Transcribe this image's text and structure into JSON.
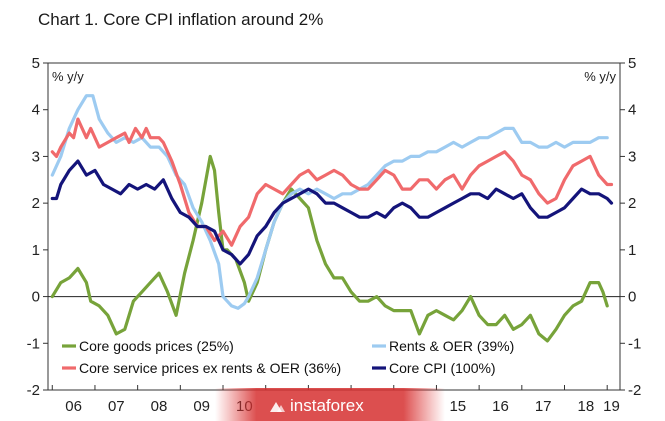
{
  "chart_data": {
    "type": "line",
    "title": "Chart 1. Core CPI inflation around 2%",
    "ylabel_left": "% y/y",
    "ylabel_right": "% y/y",
    "ylim": [
      -2,
      5
    ],
    "yticks": [
      -2,
      -1,
      0,
      1,
      2,
      3,
      4,
      5
    ],
    "xlim": [
      2005.9,
      2019.3
    ],
    "xticks": [
      {
        "label": "06",
        "x": 2006.5
      },
      {
        "label": "07",
        "x": 2007.5
      },
      {
        "label": "08",
        "x": 2008.5
      },
      {
        "label": "09",
        "x": 2009.5
      },
      {
        "label": "10",
        "x": 2010.5
      },
      {
        "label": "15",
        "x": 2015.5
      },
      {
        "label": "16",
        "x": 2016.5
      },
      {
        "label": "17",
        "x": 2017.5
      },
      {
        "label": "18",
        "x": 2018.5
      },
      {
        "label": "19",
        "x": 2019.1
      }
    ],
    "grid": false,
    "legend_position": "bottom",
    "series": [
      {
        "name": "Core goods prices (25%)",
        "color": "#77a33a",
        "points": [
          [
            2006.0,
            0.0
          ],
          [
            2006.2,
            0.3
          ],
          [
            2006.4,
            0.4
          ],
          [
            2006.6,
            0.6
          ],
          [
            2006.8,
            0.3
          ],
          [
            2006.9,
            -0.1
          ],
          [
            2007.1,
            -0.2
          ],
          [
            2007.3,
            -0.4
          ],
          [
            2007.5,
            -0.8
          ],
          [
            2007.7,
            -0.7
          ],
          [
            2007.9,
            -0.1
          ],
          [
            2008.1,
            0.1
          ],
          [
            2008.3,
            0.3
          ],
          [
            2008.5,
            0.5
          ],
          [
            2008.7,
            0.1
          ],
          [
            2008.9,
            -0.4
          ],
          [
            2009.1,
            0.5
          ],
          [
            2009.3,
            1.2
          ],
          [
            2009.5,
            2.0
          ],
          [
            2009.7,
            3.0
          ],
          [
            2009.8,
            2.7
          ],
          [
            2009.9,
            1.8
          ],
          [
            2010.0,
            1.0
          ],
          [
            2010.1,
            1.0
          ],
          [
            2010.3,
            0.8
          ],
          [
            2010.5,
            0.3
          ],
          [
            2010.6,
            -0.1
          ],
          [
            2010.8,
            0.3
          ],
          [
            2011.0,
            1.0
          ],
          [
            2011.2,
            1.6
          ],
          [
            2011.4,
            2.0
          ],
          [
            2011.6,
            2.3
          ],
          [
            2011.8,
            2.1
          ],
          [
            2012.0,
            1.9
          ],
          [
            2012.2,
            1.2
          ],
          [
            2012.4,
            0.7
          ],
          [
            2012.6,
            0.4
          ],
          [
            2012.8,
            0.4
          ],
          [
            2013.0,
            0.1
          ],
          [
            2013.2,
            -0.1
          ],
          [
            2013.4,
            -0.1
          ],
          [
            2013.6,
            0.0
          ],
          [
            2013.8,
            -0.2
          ],
          [
            2014.0,
            -0.3
          ],
          [
            2014.2,
            -0.3
          ],
          [
            2014.4,
            -0.3
          ],
          [
            2014.6,
            -0.8
          ],
          [
            2014.8,
            -0.4
          ],
          [
            2015.0,
            -0.3
          ],
          [
            2015.2,
            -0.4
          ],
          [
            2015.4,
            -0.5
          ],
          [
            2015.6,
            -0.3
          ],
          [
            2015.8,
            0.0
          ],
          [
            2016.0,
            -0.4
          ],
          [
            2016.2,
            -0.6
          ],
          [
            2016.4,
            -0.6
          ],
          [
            2016.6,
            -0.4
          ],
          [
            2016.8,
            -0.7
          ],
          [
            2017.0,
            -0.6
          ],
          [
            2017.2,
            -0.4
          ],
          [
            2017.4,
            -0.8
          ],
          [
            2017.6,
            -0.95
          ],
          [
            2017.8,
            -0.7
          ],
          [
            2018.0,
            -0.4
          ],
          [
            2018.2,
            -0.2
          ],
          [
            2018.4,
            -0.1
          ],
          [
            2018.6,
            0.3
          ],
          [
            2018.8,
            0.3
          ],
          [
            2018.9,
            0.1
          ],
          [
            2019.0,
            -0.2
          ]
        ]
      },
      {
        "name": "Rents & OER (39%)",
        "color": "#9dcbf1",
        "points": [
          [
            2006.0,
            2.6
          ],
          [
            2006.2,
            3.0
          ],
          [
            2006.4,
            3.6
          ],
          [
            2006.6,
            4.0
          ],
          [
            2006.8,
            4.3
          ],
          [
            2006.95,
            4.3
          ],
          [
            2007.1,
            3.8
          ],
          [
            2007.3,
            3.5
          ],
          [
            2007.5,
            3.3
          ],
          [
            2007.7,
            3.4
          ],
          [
            2007.9,
            3.3
          ],
          [
            2008.1,
            3.4
          ],
          [
            2008.3,
            3.2
          ],
          [
            2008.5,
            3.2
          ],
          [
            2008.7,
            3.0
          ],
          [
            2008.9,
            2.6
          ],
          [
            2009.1,
            2.4
          ],
          [
            2009.3,
            1.9
          ],
          [
            2009.5,
            1.6
          ],
          [
            2009.7,
            1.2
          ],
          [
            2009.9,
            0.7
          ],
          [
            2010.0,
            0.0
          ],
          [
            2010.2,
            -0.2
          ],
          [
            2010.35,
            -0.25
          ],
          [
            2010.5,
            -0.15
          ],
          [
            2010.6,
            0.0
          ],
          [
            2010.8,
            0.4
          ],
          [
            2011.0,
            1.0
          ],
          [
            2011.2,
            1.6
          ],
          [
            2011.4,
            2.0
          ],
          [
            2011.6,
            2.2
          ],
          [
            2011.8,
            2.3
          ],
          [
            2012.0,
            2.2
          ],
          [
            2012.2,
            2.3
          ],
          [
            2012.4,
            2.2
          ],
          [
            2012.6,
            2.1
          ],
          [
            2012.8,
            2.2
          ],
          [
            2013.0,
            2.2
          ],
          [
            2013.2,
            2.3
          ],
          [
            2013.4,
            2.4
          ],
          [
            2013.6,
            2.6
          ],
          [
            2013.8,
            2.8
          ],
          [
            2014.0,
            2.9
          ],
          [
            2014.2,
            2.9
          ],
          [
            2014.4,
            3.0
          ],
          [
            2014.6,
            3.0
          ],
          [
            2014.8,
            3.1
          ],
          [
            2015.0,
            3.1
          ],
          [
            2015.2,
            3.2
          ],
          [
            2015.4,
            3.3
          ],
          [
            2015.6,
            3.2
          ],
          [
            2015.8,
            3.3
          ],
          [
            2016.0,
            3.4
          ],
          [
            2016.2,
            3.4
          ],
          [
            2016.4,
            3.5
          ],
          [
            2016.6,
            3.6
          ],
          [
            2016.8,
            3.6
          ],
          [
            2017.0,
            3.3
          ],
          [
            2017.2,
            3.3
          ],
          [
            2017.4,
            3.2
          ],
          [
            2017.6,
            3.2
          ],
          [
            2017.8,
            3.3
          ],
          [
            2018.0,
            3.2
          ],
          [
            2018.2,
            3.3
          ],
          [
            2018.4,
            3.3
          ],
          [
            2018.6,
            3.3
          ],
          [
            2018.8,
            3.4
          ],
          [
            2019.0,
            3.4
          ]
        ]
      },
      {
        "name": "Core service prices ex rents & OER (36%)",
        "color": "#f06a6c",
        "points": [
          [
            2006.0,
            3.1
          ],
          [
            2006.1,
            3.0
          ],
          [
            2006.2,
            3.2
          ],
          [
            2006.4,
            3.5
          ],
          [
            2006.5,
            3.4
          ],
          [
            2006.6,
            3.8
          ],
          [
            2006.8,
            3.4
          ],
          [
            2006.9,
            3.6
          ],
          [
            2007.1,
            3.2
          ],
          [
            2007.3,
            3.3
          ],
          [
            2007.5,
            3.4
          ],
          [
            2007.7,
            3.5
          ],
          [
            2007.8,
            3.3
          ],
          [
            2007.95,
            3.6
          ],
          [
            2008.1,
            3.4
          ],
          [
            2008.2,
            3.6
          ],
          [
            2008.3,
            3.4
          ],
          [
            2008.5,
            3.4
          ],
          [
            2008.6,
            3.3
          ],
          [
            2008.8,
            2.9
          ],
          [
            2009.0,
            2.4
          ],
          [
            2009.2,
            1.8
          ],
          [
            2009.4,
            1.5
          ],
          [
            2009.6,
            1.5
          ],
          [
            2009.8,
            1.2
          ],
          [
            2010.0,
            1.4
          ],
          [
            2010.2,
            1.1
          ],
          [
            2010.4,
            1.5
          ],
          [
            2010.6,
            1.7
          ],
          [
            2010.8,
            2.2
          ],
          [
            2011.0,
            2.4
          ],
          [
            2011.2,
            2.3
          ],
          [
            2011.4,
            2.2
          ],
          [
            2011.6,
            2.4
          ],
          [
            2011.8,
            2.6
          ],
          [
            2012.0,
            2.7
          ],
          [
            2012.2,
            2.5
          ],
          [
            2012.4,
            2.6
          ],
          [
            2012.6,
            2.7
          ],
          [
            2012.8,
            2.6
          ],
          [
            2013.0,
            2.4
          ],
          [
            2013.2,
            2.3
          ],
          [
            2013.4,
            2.3
          ],
          [
            2013.6,
            2.5
          ],
          [
            2013.8,
            2.7
          ],
          [
            2014.0,
            2.6
          ],
          [
            2014.2,
            2.3
          ],
          [
            2014.4,
            2.3
          ],
          [
            2014.6,
            2.5
          ],
          [
            2014.8,
            2.5
          ],
          [
            2015.0,
            2.3
          ],
          [
            2015.2,
            2.5
          ],
          [
            2015.4,
            2.6
          ],
          [
            2015.6,
            2.3
          ],
          [
            2015.8,
            2.6
          ],
          [
            2016.0,
            2.8
          ],
          [
            2016.2,
            2.9
          ],
          [
            2016.4,
            3.0
          ],
          [
            2016.6,
            3.1
          ],
          [
            2016.8,
            2.9
          ],
          [
            2017.0,
            2.6
          ],
          [
            2017.2,
            2.5
          ],
          [
            2017.4,
            2.2
          ],
          [
            2017.6,
            2.0
          ],
          [
            2017.8,
            2.1
          ],
          [
            2018.0,
            2.5
          ],
          [
            2018.2,
            2.8
          ],
          [
            2018.4,
            2.9
          ],
          [
            2018.6,
            3.0
          ],
          [
            2018.8,
            2.6
          ],
          [
            2019.0,
            2.4
          ],
          [
            2019.1,
            2.4
          ]
        ]
      },
      {
        "name": "Core CPI (100%)",
        "color": "#14147a",
        "points": [
          [
            2006.0,
            2.1
          ],
          [
            2006.1,
            2.1
          ],
          [
            2006.2,
            2.4
          ],
          [
            2006.4,
            2.7
          ],
          [
            2006.6,
            2.9
          ],
          [
            2006.8,
            2.6
          ],
          [
            2007.0,
            2.7
          ],
          [
            2007.2,
            2.4
          ],
          [
            2007.4,
            2.3
          ],
          [
            2007.6,
            2.2
          ],
          [
            2007.8,
            2.4
          ],
          [
            2008.0,
            2.3
          ],
          [
            2008.2,
            2.4
          ],
          [
            2008.4,
            2.3
          ],
          [
            2008.6,
            2.5
          ],
          [
            2008.8,
            2.1
          ],
          [
            2009.0,
            1.8
          ],
          [
            2009.2,
            1.7
          ],
          [
            2009.4,
            1.5
          ],
          [
            2009.6,
            1.5
          ],
          [
            2009.8,
            1.4
          ],
          [
            2010.0,
            1.0
          ],
          [
            2010.2,
            0.9
          ],
          [
            2010.4,
            0.7
          ],
          [
            2010.6,
            0.9
          ],
          [
            2010.8,
            1.3
          ],
          [
            2011.0,
            1.5
          ],
          [
            2011.2,
            1.8
          ],
          [
            2011.4,
            2.0
          ],
          [
            2011.6,
            2.1
          ],
          [
            2011.8,
            2.2
          ],
          [
            2012.0,
            2.3
          ],
          [
            2012.2,
            2.2
          ],
          [
            2012.4,
            2.0
          ],
          [
            2012.6,
            2.0
          ],
          [
            2012.8,
            1.9
          ],
          [
            2013.0,
            1.8
          ],
          [
            2013.2,
            1.7
          ],
          [
            2013.4,
            1.7
          ],
          [
            2013.6,
            1.8
          ],
          [
            2013.8,
            1.7
          ],
          [
            2014.0,
            1.9
          ],
          [
            2014.2,
            2.0
          ],
          [
            2014.4,
            1.9
          ],
          [
            2014.6,
            1.7
          ],
          [
            2014.8,
            1.7
          ],
          [
            2015.0,
            1.8
          ],
          [
            2015.2,
            1.9
          ],
          [
            2015.4,
            2.0
          ],
          [
            2015.6,
            2.1
          ],
          [
            2015.8,
            2.2
          ],
          [
            2016.0,
            2.2
          ],
          [
            2016.2,
            2.1
          ],
          [
            2016.4,
            2.3
          ],
          [
            2016.6,
            2.2
          ],
          [
            2016.8,
            2.1
          ],
          [
            2017.0,
            2.2
          ],
          [
            2017.2,
            1.9
          ],
          [
            2017.4,
            1.7
          ],
          [
            2017.6,
            1.7
          ],
          [
            2017.8,
            1.8
          ],
          [
            2018.0,
            1.9
          ],
          [
            2018.2,
            2.1
          ],
          [
            2018.4,
            2.3
          ],
          [
            2018.6,
            2.2
          ],
          [
            2018.8,
            2.2
          ],
          [
            2019.0,
            2.1
          ],
          [
            2019.1,
            2.0
          ]
        ]
      }
    ]
  },
  "watermark": {
    "text": "instaforex",
    "icon": "instaforex-logo-icon"
  }
}
